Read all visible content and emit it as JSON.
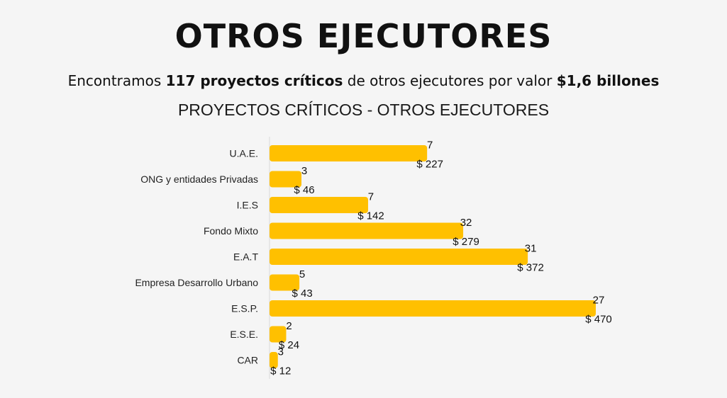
{
  "header": {
    "title": "OTROS EJECUTORES",
    "subtitle_parts": [
      {
        "text": "Encontramos ",
        "bold": false
      },
      {
        "text": "117 proyectos críticos",
        "bold": true
      },
      {
        "text": " de otros ejecutores por valor ",
        "bold": false
      },
      {
        "text": "$1,6 billones",
        "bold": true
      }
    ]
  },
  "chart_data": {
    "type": "bar",
    "orientation": "horizontal",
    "title": "PROYECTOS CRÍTICOS - OTROS EJECUTORES",
    "categories": [
      "U.A.E.",
      "ONG y entidades Privadas",
      "I.E.S",
      "Fondo Mixto",
      "E.A.T",
      "Empresa Desarrollo Urbano",
      "E.S.P.",
      "E.S.E.",
      "CAR"
    ],
    "series": [
      {
        "name": "",
        "values": [
          227,
          46,
          142,
          279,
          372,
          43,
          470,
          24,
          12
        ],
        "value_labels": [
          "$ 227",
          "$ 46",
          "$ 142",
          "$ 279",
          "$ 372",
          "$ 43",
          "$ 470",
          "$ 24",
          "$ 12"
        ]
      }
    ],
    "counts": [
      7,
      3,
      7,
      32,
      31,
      5,
      27,
      2,
      3
    ],
    "xlim": [
      0,
      470
    ],
    "grid": false,
    "legend": "none",
    "bar_color": "#FFC000"
  }
}
